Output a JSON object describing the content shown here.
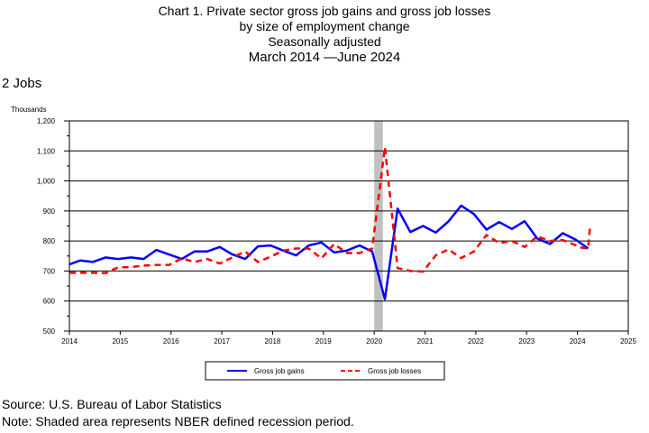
{
  "titles": {
    "line1": "Chart 1. Private sector gross job gains and gross job losses",
    "line2": "by size of employment change",
    "line3": "Seasonally adjusted",
    "line4": "March 2014 —June 2024"
  },
  "subtitle": "2 Jobs",
  "units_label": "Thousands",
  "footer": {
    "source": "Source: U.S. Bureau of Labor Statistics",
    "note": "Note: Shaded area represents NBER defined recession period."
  },
  "chart_data": {
    "type": "line",
    "ylabel": "Thousands",
    "ylim": [
      500,
      1200
    ],
    "xlim": [
      2014,
      2025
    ],
    "x_ticks": [
      "2014",
      "2015",
      "2016",
      "2017",
      "2018",
      "2019",
      "2020",
      "2021",
      "2022",
      "2023",
      "2024",
      "2025"
    ],
    "y_ticks": [
      "500",
      "600",
      "700",
      "800",
      "900",
      "1,000",
      "1,100",
      "1,200"
    ],
    "grid": true,
    "legend_placement": "bottom",
    "recession": {
      "start": 2020.0,
      "end": 2020.17
    },
    "x": [
      2014.21,
      2014.46,
      2014.71,
      2014.96,
      2015.21,
      2015.46,
      2015.71,
      2015.96,
      2016.21,
      2016.46,
      2016.71,
      2016.96,
      2017.21,
      2017.46,
      2017.71,
      2017.96,
      2018.21,
      2018.46,
      2018.71,
      2018.96,
      2019.21,
      2019.46,
      2019.71,
      2019.96,
      2020.21,
      2020.46,
      2020.71,
      2020.96,
      2021.21,
      2021.46,
      2021.71,
      2021.96,
      2022.21,
      2022.46,
      2022.71,
      2022.96,
      2023.21,
      2023.46,
      2023.71,
      2023.96,
      2024.21
    ],
    "series": [
      {
        "name": "Gross job gains",
        "color": "#0000ff",
        "style": "solid",
        "values": [
          735,
          730,
          745,
          740,
          745,
          740,
          770,
          755,
          740,
          765,
          765,
          780,
          755,
          740,
          782,
          785,
          768,
          752,
          785,
          795,
          762,
          768,
          785,
          765,
          606,
          908,
          830,
          850,
          828,
          865,
          918,
          890,
          838,
          863,
          840,
          866,
          808,
          790,
          826,
          805,
          775
        ]
      },
      {
        "name": "Gross job losses",
        "color": "#ff0000",
        "style": "dashed",
        "values": [
          694,
          694,
          693,
          712,
          713,
          718,
          720,
          720,
          742,
          730,
          740,
          725,
          745,
          765,
          730,
          748,
          768,
          775,
          775,
          742,
          790,
          760,
          760,
          775,
          1112,
          710,
          700,
          698,
          752,
          772,
          743,
          765,
          820,
          793,
          800,
          780,
          815,
          800,
          803,
          786,
          775
        ]
      }
    ],
    "series_start": [
      {
        "x": 2014.0,
        "gains": 722,
        "losses": 694
      }
    ],
    "series_end": [
      {
        "x": 2024.0,
        "losses": 780
      },
      {
        "x": 2024.25,
        "losses": 853
      }
    ]
  }
}
